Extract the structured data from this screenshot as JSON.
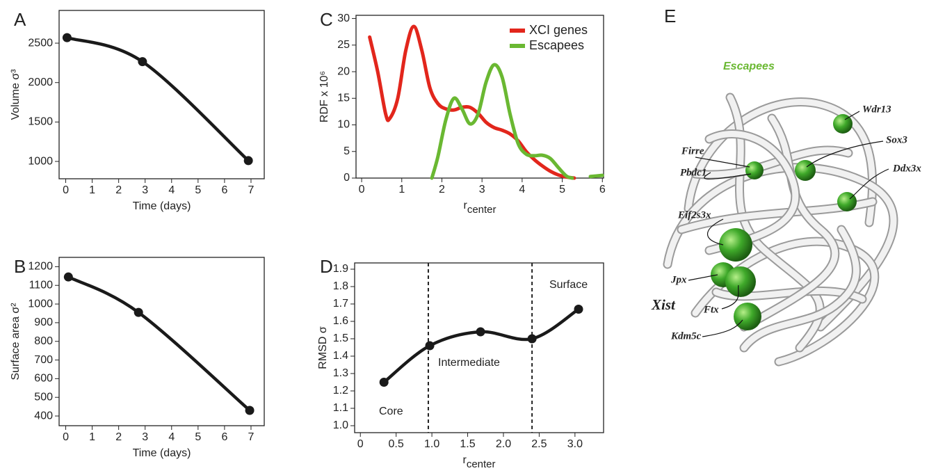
{
  "chart_data": [
    {
      "panel": "A",
      "type": "line",
      "xlabel": "Time (days)",
      "ylabel": "Volume σ³",
      "color": "#1a1a1a",
      "markers": true,
      "x": [
        0.05,
        2.9,
        6.9
      ],
      "values": [
        2570,
        2265,
        1010
      ],
      "xlim": [
        -0.25,
        7.5
      ],
      "xticks": [
        0,
        1,
        2,
        3,
        4,
        5,
        6,
        7
      ],
      "ylim": [
        780,
        2915
      ],
      "yticks": [
        1000,
        1500,
        2000,
        2500
      ]
    },
    {
      "panel": "B",
      "type": "line",
      "xlabel": "Time (days)",
      "ylabel": "Surface area σ²",
      "color": "#1a1a1a",
      "markers": true,
      "x": [
        0.1,
        2.75,
        6.95
      ],
      "values": [
        1145,
        955,
        430
      ],
      "xlim": [
        -0.25,
        7.5
      ],
      "xticks": [
        0,
        1,
        2,
        3,
        4,
        5,
        6,
        7
      ],
      "ylim": [
        348,
        1250
      ],
      "yticks": [
        400,
        500,
        600,
        700,
        800,
        900,
        1000,
        1100,
        1200
      ]
    },
    {
      "panel": "C",
      "type": "line",
      "xlabel": "r",
      "xlabel_sub": "center",
      "ylabel": "RDF x 10⁶",
      "legend": "upper right",
      "series": [
        {
          "name": "XCI genes",
          "color": "#e2261c",
          "x": [
            0.2,
            0.4,
            0.6,
            0.7,
            0.9,
            1.1,
            1.3,
            1.5,
            1.7,
            1.9,
            2.1,
            2.3,
            2.5,
            2.7,
            2.9,
            3.1,
            3.3,
            3.5,
            3.7,
            3.9,
            4.1,
            4.3,
            4.5,
            4.7,
            4.9,
            5.1,
            5.3
          ],
          "values": [
            26.5,
            20,
            12,
            11.2,
            15,
            24,
            28.5,
            24,
            17,
            14,
            13,
            12.8,
            13.3,
            13.3,
            12.2,
            10.5,
            9.5,
            9,
            8.3,
            7,
            5,
            3.5,
            2.3,
            1.3,
            0.6,
            0.2,
            0
          ]
        },
        {
          "name": "Escapees",
          "color": "#6ab832",
          "x": [
            1.75,
            1.9,
            2.1,
            2.3,
            2.5,
            2.7,
            2.9,
            3.1,
            3.3,
            3.5,
            3.7,
            3.9,
            4.1,
            4.3,
            4.5,
            4.7,
            4.9,
            5.1,
            5.25,
            5.5,
            5.7,
            6.0
          ],
          "values": [
            0,
            4,
            11,
            15,
            13,
            10.2,
            12,
            18,
            21.3,
            19,
            12,
            6.5,
            4.5,
            4.2,
            4.3,
            3.7,
            2,
            0.4,
            0,
            null,
            0.3,
            0.5
          ]
        }
      ],
      "xlim": [
        -0.14,
        6.03
      ],
      "xticks": [
        0,
        1,
        2,
        3,
        4,
        5,
        6
      ],
      "ylim": [
        0,
        30.6
      ],
      "yticks": [
        0,
        5,
        10,
        15,
        20,
        25,
        30
      ]
    },
    {
      "panel": "D",
      "type": "line",
      "xlabel": "r",
      "xlabel_sub": "center",
      "ylabel": "RMSD σ",
      "color": "#1a1a1a",
      "markers": true,
      "x": [
        0.33,
        0.97,
        1.68,
        2.4,
        3.05
      ],
      "values": [
        1.25,
        1.46,
        1.54,
        1.5,
        1.67
      ],
      "vlines": [
        0.95,
        2.4
      ],
      "annotations": [
        "Core",
        "Intermediate",
        "Surface"
      ],
      "xlim": [
        -0.08,
        3.4
      ],
      "xticks": [
        0,
        0.5,
        {
          "value": 1,
          "label": "1.0"
        },
        1.5,
        {
          "value": 2,
          "label": "2.0"
        },
        2.5,
        {
          "value": 3,
          "label": "3.0"
        }
      ],
      "ylim": [
        0.96,
        1.936
      ],
      "yticks": [
        {
          "value": 1,
          "label": "1.0"
        },
        1.1,
        1.2,
        1.3,
        1.4,
        1.5,
        1.6,
        1.7,
        1.8,
        1.9
      ]
    }
  ],
  "figure_e": {
    "panel": "E",
    "title": "Escapees",
    "labels": [
      "Wdr13",
      "Firre",
      "Sox3",
      "Pbdc1",
      "Ddx3x",
      "Eif2s3x",
      "Jpx",
      "Xist",
      "Ftx",
      "Kdm5c"
    ]
  }
}
